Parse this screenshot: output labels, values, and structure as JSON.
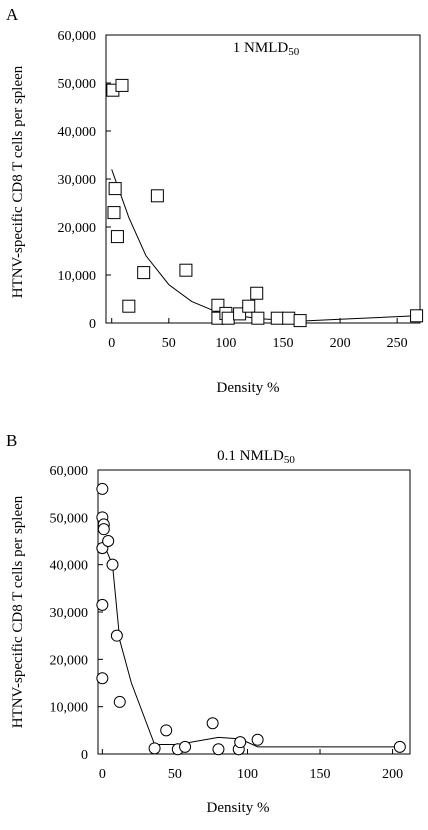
{
  "chart_data": [
    {
      "panel": "A",
      "type": "scatter",
      "title": "1 NMLD",
      "title_subscript": "50",
      "xlabel": "Density %",
      "ylabel": "HTNV-specific CD8 T cells per spleen",
      "xlim": [
        -5,
        270
      ],
      "ylim": [
        0,
        60000
      ],
      "xticks": [
        0,
        50,
        100,
        150,
        200,
        250
      ],
      "yticks": [
        0,
        10000,
        20000,
        30000,
        40000,
        50000,
        60000
      ],
      "ytick_labels": [
        "0",
        "10,000",
        "20,000",
        "30,000",
        "40,000",
        "50,000",
        "60,000"
      ],
      "marker": "square",
      "points": [
        {
          "x": 1,
          "y": 48500
        },
        {
          "x": 9,
          "y": 49500
        },
        {
          "x": 3,
          "y": 28000
        },
        {
          "x": 2,
          "y": 23000
        },
        {
          "x": 5,
          "y": 18000
        },
        {
          "x": 40,
          "y": 26500
        },
        {
          "x": 28,
          "y": 10500
        },
        {
          "x": 15,
          "y": 3500
        },
        {
          "x": 65,
          "y": 11000
        },
        {
          "x": 93,
          "y": 3700
        },
        {
          "x": 93,
          "y": 1000
        },
        {
          "x": 100,
          "y": 2000
        },
        {
          "x": 102,
          "y": 1000
        },
        {
          "x": 112,
          "y": 1900
        },
        {
          "x": 120,
          "y": 3500
        },
        {
          "x": 127,
          "y": 6200
        },
        {
          "x": 128,
          "y": 1000
        },
        {
          "x": 145,
          "y": 1000
        },
        {
          "x": 155,
          "y": 1000
        },
        {
          "x": 165,
          "y": 500
        },
        {
          "x": 267,
          "y": 1500
        }
      ],
      "fit_line": [
        {
          "x": 0,
          "y": 32000
        },
        {
          "x": 15,
          "y": 22000
        },
        {
          "x": 30,
          "y": 14000
        },
        {
          "x": 50,
          "y": 8000
        },
        {
          "x": 70,
          "y": 4500
        },
        {
          "x": 93,
          "y": 2200
        },
        {
          "x": 110,
          "y": 1500
        },
        {
          "x": 130,
          "y": 900
        },
        {
          "x": 165,
          "y": 400
        },
        {
          "x": 200,
          "y": 800
        },
        {
          "x": 267,
          "y": 1500
        }
      ]
    },
    {
      "panel": "B",
      "type": "scatter",
      "title": "0.1 NMLD",
      "title_subscript": "50",
      "xlabel": "Density %",
      "ylabel": "HTNV-specific CD8 T cells per spleen",
      "xlim": [
        -3,
        212
      ],
      "ylim": [
        0,
        60000
      ],
      "xticks": [
        0,
        50,
        100,
        150,
        200
      ],
      "yticks": [
        0,
        10000,
        20000,
        30000,
        40000,
        50000,
        60000
      ],
      "ytick_labels": [
        "0",
        "10,000",
        "20,000",
        "30,000",
        "40,000",
        "50,000",
        "60,000"
      ],
      "marker": "circle",
      "points": [
        {
          "x": 0,
          "y": 56000
        },
        {
          "x": 0,
          "y": 50000
        },
        {
          "x": 1,
          "y": 48500
        },
        {
          "x": 1,
          "y": 47500
        },
        {
          "x": 0,
          "y": 43500
        },
        {
          "x": 4,
          "y": 45000
        },
        {
          "x": 7,
          "y": 40000
        },
        {
          "x": 0,
          "y": 31500
        },
        {
          "x": 10,
          "y": 25000
        },
        {
          "x": 0,
          "y": 16000
        },
        {
          "x": 12,
          "y": 11000
        },
        {
          "x": 44,
          "y": 5000
        },
        {
          "x": 76,
          "y": 6500
        },
        {
          "x": 36,
          "y": 1200
        },
        {
          "x": 52,
          "y": 1000
        },
        {
          "x": 57,
          "y": 1500
        },
        {
          "x": 80,
          "y": 1000
        },
        {
          "x": 94,
          "y": 1000
        },
        {
          "x": 95,
          "y": 2500
        },
        {
          "x": 107,
          "y": 3000
        },
        {
          "x": 205,
          "y": 1500
        }
      ],
      "fit_line": [
        {
          "x": 0,
          "y": 45000
        },
        {
          "x": 7,
          "y": 40000
        },
        {
          "x": 12,
          "y": 24000
        },
        {
          "x": 20,
          "y": 15000
        },
        {
          "x": 36,
          "y": 2000
        },
        {
          "x": 52,
          "y": 2000
        },
        {
          "x": 80,
          "y": 3500
        },
        {
          "x": 95,
          "y": 3200
        },
        {
          "x": 107,
          "y": 1500
        },
        {
          "x": 205,
          "y": 1500
        }
      ]
    }
  ]
}
